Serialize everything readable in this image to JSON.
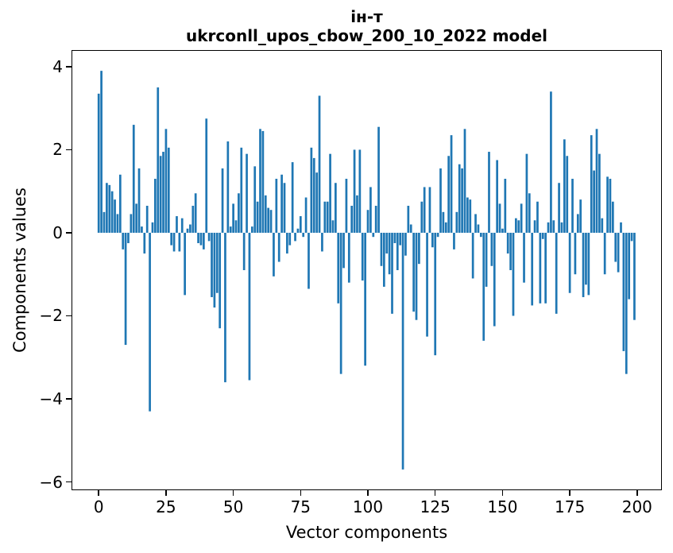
{
  "title": {
    "line1": "ін-т",
    "line2": "ukrconll_upos_cbow_200_10_2022 model"
  },
  "chart_data": {
    "type": "bar",
    "title": "ін-т\nukrconll_upos_cbow_200_10_2022 model",
    "xlabel": "Vector components",
    "ylabel": "Components values",
    "x_ticks": [
      0,
      25,
      50,
      75,
      100,
      125,
      150,
      175,
      200
    ],
    "y_ticks": [
      4,
      2,
      0,
      -2,
      -4,
      -6
    ],
    "xlim": [
      -10.1,
      209.2
    ],
    "ylim": [
      -6.2,
      4.4
    ],
    "grid": false,
    "legend": "none",
    "bar_color": "#1f77b4",
    "bar_width": 0.8,
    "x": "component index 0..199",
    "values": [
      3.35,
      3.9,
      0.5,
      1.2,
      1.15,
      1.0,
      0.8,
      0.45,
      1.4,
      -0.4,
      -2.7,
      -0.25,
      0.45,
      2.6,
      0.7,
      1.55,
      0.15,
      -0.5,
      0.65,
      -4.3,
      0.25,
      1.3,
      3.5,
      1.85,
      1.95,
      2.5,
      2.05,
      -0.3,
      -0.45,
      0.4,
      -0.45,
      0.35,
      -1.5,
      0.1,
      0.2,
      0.65,
      0.95,
      -0.25,
      -0.3,
      -0.4,
      2.75,
      -0.2,
      -1.55,
      -1.8,
      -1.45,
      -2.3,
      1.55,
      -3.6,
      2.2,
      0.15,
      0.7,
      0.3,
      0.95,
      2.05,
      -0.9,
      1.9,
      -3.55,
      0.15,
      1.6,
      0.75,
      2.5,
      2.45,
      0.9,
      0.6,
      0.55,
      -1.05,
      1.3,
      -0.7,
      1.4,
      1.2,
      -0.5,
      -0.3,
      1.7,
      -0.2,
      0.1,
      0.4,
      -0.1,
      0.85,
      -1.35,
      2.05,
      1.8,
      1.45,
      3.3,
      -0.45,
      0.75,
      0.75,
      1.9,
      0.3,
      1.2,
      -1.7,
      -3.4,
      -0.85,
      1.3,
      -1.2,
      0.65,
      2.0,
      0.9,
      2.0,
      -1.15,
      -3.2,
      0.55,
      1.1,
      -0.1,
      0.65,
      2.55,
      -0.8,
      -1.3,
      -0.5,
      -1.0,
      -1.95,
      -0.25,
      -0.9,
      -0.3,
      -5.7,
      -0.55,
      0.65,
      0.2,
      -1.9,
      -2.1,
      -0.75,
      0.75,
      1.1,
      -2.5,
      1.1,
      -0.35,
      -2.95,
      -0.1,
      1.55,
      0.5,
      0.25,
      1.85,
      2.35,
      -0.4,
      0.5,
      1.65,
      1.55,
      2.5,
      0.85,
      0.8,
      -1.1,
      0.45,
      0.2,
      -0.1,
      -2.6,
      -1.3,
      1.95,
      -0.8,
      -2.25,
      1.75,
      0.7,
      0.1,
      1.3,
      -0.5,
      -0.9,
      -2.0,
      0.35,
      0.3,
      0.7,
      -1.2,
      1.9,
      0.95,
      -1.75,
      0.3,
      0.75,
      -1.7,
      -0.15,
      -1.7,
      0.25,
      3.4,
      0.3,
      -1.95,
      1.2,
      0.25,
      2.25,
      1.85,
      -1.45,
      1.3,
      -1.0,
      0.45,
      0.8,
      -1.55,
      -1.25,
      -1.5,
      2.35,
      1.5,
      2.5,
      1.9,
      0.35,
      -1.0,
      1.35,
      1.3,
      0.75,
      -0.7,
      -0.95,
      0.25,
      -2.85,
      -3.4,
      -1.6,
      -0.2,
      -2.1
    ]
  }
}
